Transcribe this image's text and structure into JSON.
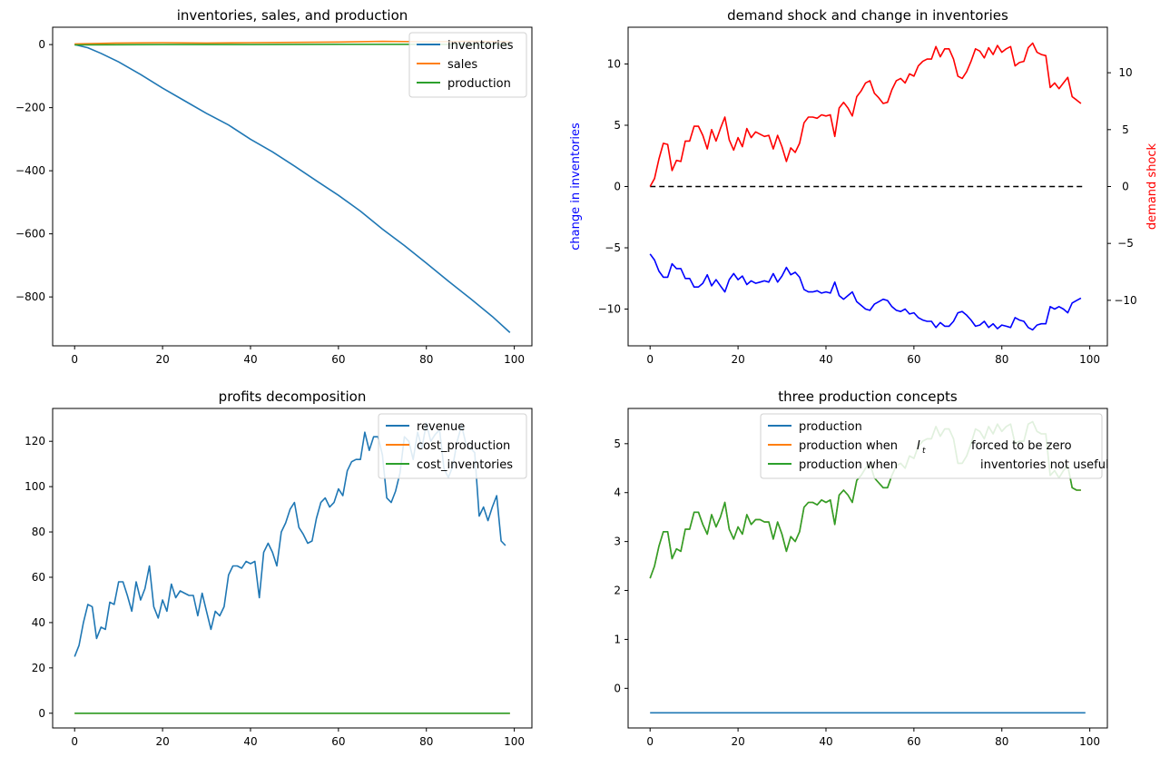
{
  "chart_data": [
    {
      "type": "line",
      "title": "inventories, sales, and production",
      "x_range": [
        0,
        99
      ],
      "xlim": [
        -5,
        104
      ],
      "ylim": [
        -955,
        55
      ],
      "x_ticks": [
        0,
        20,
        40,
        60,
        80,
        100
      ],
      "y_ticks": [
        -800,
        -600,
        -400,
        -200,
        0
      ],
      "legend_position": "upper-right",
      "series": [
        {
          "name": "inventories",
          "color": "#1f77b4",
          "points": [
            [
              0,
              0
            ],
            [
              3,
              -10
            ],
            [
              6,
              -28
            ],
            [
              10,
              -55
            ],
            [
              15,
              -95
            ],
            [
              20,
              -138
            ],
            [
              25,
              -178
            ],
            [
              30,
              -218
            ],
            [
              35,
              -255
            ],
            [
              40,
              -300
            ],
            [
              45,
              -340
            ],
            [
              50,
              -385
            ],
            [
              55,
              -432
            ],
            [
              60,
              -478
            ],
            [
              65,
              -528
            ],
            [
              70,
              -585
            ],
            [
              75,
              -637
            ],
            [
              80,
              -693
            ],
            [
              85,
              -750
            ],
            [
              90,
              -805
            ],
            [
              95,
              -862
            ],
            [
              99,
              -913
            ]
          ]
        },
        {
          "name": "sales",
          "color": "#ff7f0e",
          "points": [
            [
              0,
              2
            ],
            [
              10,
              5
            ],
            [
              20,
              6
            ],
            [
              30,
              5
            ],
            [
              40,
              6
            ],
            [
              50,
              7
            ],
            [
              60,
              8
            ],
            [
              70,
              10
            ],
            [
              80,
              9
            ],
            [
              90,
              10
            ],
            [
              99,
              9
            ]
          ]
        },
        {
          "name": "production",
          "color": "#2ca02c",
          "points": [
            [
              0,
              -1
            ],
            [
              20,
              0
            ],
            [
              40,
              0
            ],
            [
              60,
              1
            ],
            [
              80,
              1
            ],
            [
              99,
              0
            ]
          ]
        }
      ]
    },
    {
      "type": "line",
      "title": "demand shock and change in inventories",
      "ylabel_left": "change in inventories",
      "ylabel_right": "demand shock",
      "xlim": [
        -5,
        104
      ],
      "ylim_left": [
        -13,
        13
      ],
      "ylim_right": [
        -14,
        14
      ],
      "x_ticks": [
        0,
        20,
        40,
        60,
        80,
        100
      ],
      "y_ticks_left": [
        -10,
        -5,
        0,
        5,
        10
      ],
      "y_ticks_right": [
        -10,
        -5,
        0,
        5,
        10
      ],
      "zero_line": {
        "style": "dashed",
        "color": "#000000"
      },
      "series": [
        {
          "name": "demand shock",
          "axis": "right",
          "color": "#ff0000",
          "values": [
            0,
            0.7,
            2.4,
            3.8,
            3.7,
            1.4,
            2.3,
            2.2,
            4.0,
            4.0,
            5.3,
            5.3,
            4.5,
            3.3,
            5.0,
            4.0,
            5.1,
            6.1,
            4.1,
            3.2,
            4.3,
            3.5,
            5.1,
            4.3,
            4.8,
            4.6,
            4.4,
            4.5,
            3.3,
            4.5,
            3.5,
            2.2,
            3.4,
            3.0,
            3.8,
            5.6,
            6.1,
            6.1,
            6.0,
            6.3,
            6.2,
            6.3,
            4.4,
            6.9,
            7.4,
            6.9,
            6.2,
            7.9,
            8.4,
            9.1,
            9.3,
            8.2,
            7.8,
            7.3,
            7.4,
            8.5,
            9.3,
            9.5,
            9.1,
            9.9,
            9.7,
            10.6,
            11.0,
            11.2,
            11.2,
            12.3,
            11.4,
            12.1,
            12.1,
            11.2,
            9.7,
            9.5,
            10.1,
            11.0,
            12.1,
            11.9,
            11.3,
            12.2,
            11.6,
            12.4,
            11.8,
            12.1,
            12.3,
            10.6,
            10.9,
            11.0,
            12.2,
            12.6,
            11.8,
            11.6,
            11.5,
            8.7,
            9.1,
            8.6,
            9.1,
            9.6,
            7.9,
            7.6,
            7.3
          ]
        },
        {
          "name": "change in inventories",
          "axis": "left",
          "color": "#0000ff",
          "values": [
            -5.5,
            -6.0,
            -6.9,
            -7.4,
            -7.4,
            -6.3,
            -6.7,
            -6.7,
            -7.5,
            -7.5,
            -8.2,
            -8.2,
            -7.9,
            -7.2,
            -8.1,
            -7.6,
            -8.1,
            -8.6,
            -7.6,
            -7.1,
            -7.6,
            -7.3,
            -8.0,
            -7.7,
            -7.9,
            -7.8,
            -7.7,
            -7.8,
            -7.1,
            -7.8,
            -7.3,
            -6.6,
            -7.2,
            -7.0,
            -7.4,
            -8.4,
            -8.6,
            -8.6,
            -8.5,
            -8.7,
            -8.6,
            -8.7,
            -7.8,
            -8.9,
            -9.2,
            -8.9,
            -8.6,
            -9.4,
            -9.7,
            -10.0,
            -10.1,
            -9.6,
            -9.4,
            -9.2,
            -9.3,
            -9.8,
            -10.1,
            -10.2,
            -10.0,
            -10.4,
            -10.3,
            -10.7,
            -10.9,
            -11.0,
            -11.0,
            -11.5,
            -11.1,
            -11.4,
            -11.4,
            -11.0,
            -10.3,
            -10.2,
            -10.5,
            -10.9,
            -11.4,
            -11.3,
            -11.0,
            -11.5,
            -11.2,
            -11.6,
            -11.3,
            -11.4,
            -11.5,
            -10.7,
            -10.9,
            -11.0,
            -11.5,
            -11.7,
            -11.3,
            -11.2,
            -11.2,
            -9.8,
            -10.0,
            -9.8,
            -10.0,
            -10.3,
            -9.5,
            -9.3,
            -9.1
          ]
        }
      ]
    },
    {
      "type": "line",
      "title": "profits decomposition",
      "xlim": [
        -5,
        104
      ],
      "ylim": [
        -6.5,
        134.5
      ],
      "x_ticks": [
        0,
        20,
        40,
        60,
        80,
        100
      ],
      "y_ticks": [
        0,
        20,
        40,
        60,
        80,
        100,
        120
      ],
      "legend_position": "upper-right",
      "series": [
        {
          "name": "revenue",
          "color": "#1f77b4",
          "values": [
            25,
            30,
            40,
            48,
            47,
            33,
            38,
            37,
            49,
            48,
            58,
            58,
            52,
            45,
            58,
            50,
            55,
            65,
            47,
            42,
            50,
            45,
            57,
            51,
            54,
            53,
            52,
            52,
            43,
            53,
            45,
            37,
            45,
            43,
            47,
            61,
            65,
            65,
            64,
            67,
            66,
            67,
            51,
            71,
            75,
            71,
            65,
            80,
            84,
            90,
            93,
            82,
            79,
            75,
            76,
            86,
            93,
            95,
            91,
            93,
            99,
            96,
            107,
            111,
            112,
            112,
            124,
            116,
            122,
            122,
            114,
            95,
            93,
            98,
            106,
            122,
            120,
            112,
            124,
            117,
            128,
            120,
            123,
            125,
            108,
            104,
            109,
            120,
            127,
            119,
            117,
            115,
            87,
            91,
            85,
            91,
            96,
            76,
            74
          ]
        },
        {
          "name": "cost_production",
          "color": "#ff7f0e",
          "values_constant": 0,
          "n": 100
        },
        {
          "name": "cost_inventories",
          "color": "#2ca02c",
          "values_constant": 0,
          "n": 100
        }
      ]
    },
    {
      "type": "line",
      "title": "three production concepts",
      "xlim": [
        -5,
        104
      ],
      "ylim": [
        -0.81,
        5.72
      ],
      "x_ticks": [
        0,
        20,
        40,
        60,
        80,
        100
      ],
      "y_ticks": [
        0,
        1,
        2,
        3,
        4,
        5
      ],
      "legend_position": "upper-right",
      "series": [
        {
          "name": "production",
          "label_parts": [
            "production"
          ],
          "color": "#1f77b4",
          "values_constant": -0.5,
          "n": 100
        },
        {
          "name": "production when I_t forced to be zero",
          "label_parts": [
            "production when",
            "I",
            "t",
            "forced to be zero"
          ],
          "color": "#ff7f0e",
          "values": [
            2.25,
            2.5,
            2.9,
            3.2,
            3.2,
            2.65,
            2.85,
            2.8,
            3.25,
            3.25,
            3.6,
            3.6,
            3.35,
            3.15,
            3.55,
            3.3,
            3.5,
            3.8,
            3.25,
            3.05,
            3.3,
            3.15,
            3.55,
            3.35,
            3.45,
            3.45,
            3.4,
            3.4,
            3.05,
            3.4,
            3.15,
            2.8,
            3.1,
            3.0,
            3.2,
            3.7,
            3.8,
            3.8,
            3.75,
            3.85,
            3.8,
            3.85,
            3.35,
            3.95,
            4.05,
            3.95,
            3.8,
            4.25,
            4.35,
            4.5,
            4.6,
            4.3,
            4.2,
            4.1,
            4.1,
            4.35,
            4.55,
            4.6,
            4.5,
            4.75,
            4.7,
            4.95,
            5.05,
            5.1,
            5.1,
            5.35,
            5.15,
            5.3,
            5.3,
            5.1,
            4.6,
            4.6,
            4.75,
            5.0,
            5.3,
            5.25,
            5.1,
            5.35,
            5.2,
            5.4,
            5.25,
            5.35,
            5.4,
            5.0,
            5.05,
            5.05,
            5.4,
            5.45,
            5.25,
            5.2,
            5.2,
            4.35,
            4.45,
            4.3,
            4.45,
            4.55,
            4.1,
            4.05,
            4.05
          ]
        },
        {
          "name": "production when inventories not useful",
          "label_parts": [
            "production when",
            "inventories not useful"
          ],
          "color": "#2ca02c",
          "same_as_series": 1
        }
      ]
    }
  ]
}
